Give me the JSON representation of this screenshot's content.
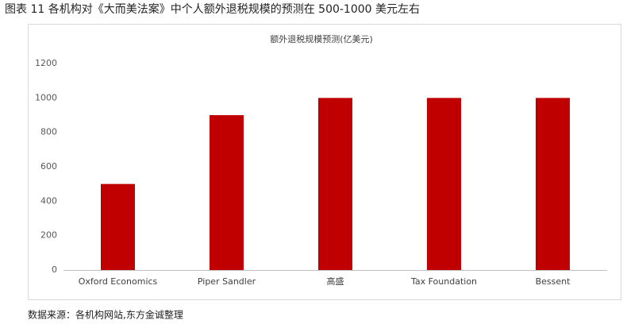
{
  "caption": "图表 11 各机构对《大而美法案》中个人额外退税规模的预测在 500-1000 美元左右",
  "source": "数据来源：各机构网站,东方金诚整理",
  "chart_data": {
    "type": "bar",
    "title": "额外退税规模预测(亿美元)",
    "categories": [
      "Oxford Economics",
      "Piper Sandler",
      "高盛",
      "Tax Foundation",
      "Bessent"
    ],
    "values": [
      500,
      900,
      1000,
      1000,
      1000
    ],
    "color": "#c00000",
    "ylim": [
      0,
      1200
    ],
    "yticks": [
      0,
      200,
      400,
      600,
      800,
      1000,
      1200
    ],
    "grid": false
  }
}
